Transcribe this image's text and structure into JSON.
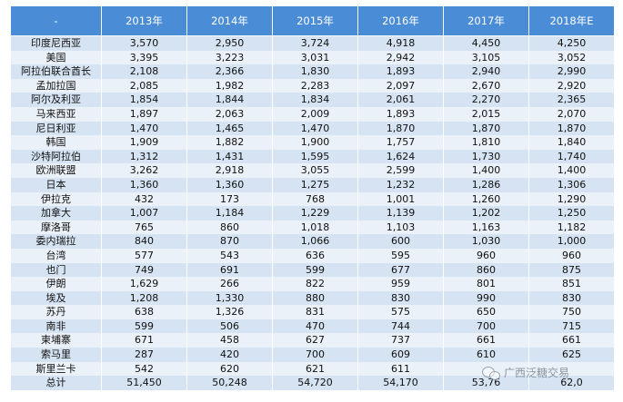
{
  "table": {
    "headers": [
      "-",
      "2013年",
      "2014年",
      "2015年",
      "2016年",
      "2017年",
      "2018年E"
    ],
    "rows": [
      [
        "印度尼西亚",
        "3,570",
        "2,950",
        "3,724",
        "4,918",
        "4,450",
        "4,250"
      ],
      [
        "美国",
        "3,395",
        "3,223",
        "3,031",
        "2,942",
        "3,105",
        "3,052"
      ],
      [
        "阿拉伯联合酋长",
        "2,108",
        "2,366",
        "1,830",
        "1,893",
        "2,940",
        "2,990"
      ],
      [
        "孟加拉国",
        "2,085",
        "1,982",
        "2,283",
        "2,097",
        "2,670",
        "2,920"
      ],
      [
        "阿尔及利亚",
        "1,854",
        "1,844",
        "1,834",
        "2,061",
        "2,270",
        "2,365"
      ],
      [
        "马来西亚",
        "1,897",
        "2,063",
        "2,009",
        "1,893",
        "2,015",
        "2,070"
      ],
      [
        "尼日利亚",
        "1,470",
        "1,465",
        "1,470",
        "1,870",
        "1,870",
        "1,870"
      ],
      [
        "韩国",
        "1,909",
        "1,882",
        "1,900",
        "1,757",
        "1,810",
        "1,840"
      ],
      [
        "沙特阿拉伯",
        "1,312",
        "1,431",
        "1,595",
        "1,624",
        "1,730",
        "1,740"
      ],
      [
        "欧洲联盟",
        "3,262",
        "2,918",
        "3,055",
        "2,599",
        "1,400",
        "1,400"
      ],
      [
        "日本",
        "1,360",
        "1,360",
        "1,275",
        "1,232",
        "1,286",
        "1,306"
      ],
      [
        "伊拉克",
        "432",
        "173",
        "768",
        "1,001",
        "1,260",
        "1,290"
      ],
      [
        "加拿大",
        "1,007",
        "1,184",
        "1,229",
        "1,139",
        "1,202",
        "1,250"
      ],
      [
        "摩洛哥",
        "765",
        "860",
        "1,018",
        "1,103",
        "1,163",
        "1,182"
      ],
      [
        "委内瑞拉",
        "840",
        "870",
        "1,066",
        "600",
        "1,030",
        "1,000"
      ],
      [
        "台湾",
        "577",
        "543",
        "636",
        "595",
        "960",
        "960"
      ],
      [
        "也门",
        "749",
        "691",
        "599",
        "677",
        "860",
        "875"
      ],
      [
        "伊朗",
        "1,629",
        "266",
        "822",
        "959",
        "801",
        "851"
      ],
      [
        "埃及",
        "1,208",
        "1,330",
        "880",
        "830",
        "990",
        "830"
      ],
      [
        "苏丹",
        "638",
        "1,326",
        "831",
        "575",
        "650",
        "750"
      ],
      [
        "南非",
        "599",
        "506",
        "470",
        "744",
        "700",
        "715"
      ],
      [
        "柬埔寨",
        "671",
        "458",
        "627",
        "737",
        "661",
        "661"
      ],
      [
        "索马里",
        "287",
        "420",
        "700",
        "609",
        "610",
        "625"
      ],
      [
        "斯里兰卡",
        "542",
        "620",
        "621",
        "611",
        "",
        ""
      ],
      [
        "总计",
        "51,450",
        "50,248",
        "54,720",
        "54,170",
        "53,76",
        "62,0"
      ]
    ]
  },
  "watermark": {
    "text": "广西泛糖交易"
  },
  "colors": {
    "header_bg": "#4a8cd6",
    "row_dark": "#d5e3f2",
    "row_light": "#ebf1f8"
  }
}
